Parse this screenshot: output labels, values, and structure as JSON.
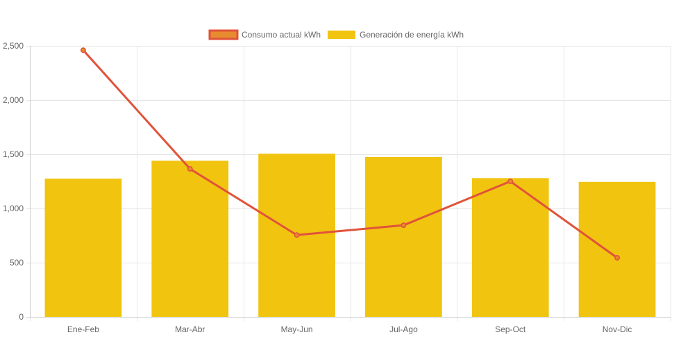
{
  "chart_data": {
    "type": "bar",
    "categories": [
      "Ene-Feb",
      "Mar-Abr",
      "May-Jun",
      "Jul-Ago",
      "Sep-Oct",
      "Nov-Dic"
    ],
    "series": [
      {
        "name": "Consumo actual kWh",
        "type": "line",
        "values": [
          2460,
          1365,
          755,
          845,
          1250,
          545
        ],
        "color": "#e0533a",
        "fill": "#e88a2e"
      },
      {
        "name": "Generación de energía kWh",
        "type": "bar",
        "values": [
          1275,
          1440,
          1505,
          1475,
          1280,
          1245
        ],
        "color": "#f1c40f"
      }
    ],
    "ylim": [
      0,
      2500
    ],
    "yticks": [
      0,
      500,
      1000,
      1500,
      2000,
      2500
    ],
    "ytick_labels": [
      "0",
      "500",
      "1,000",
      "1,500",
      "2,000",
      "2,500"
    ],
    "grid": true,
    "legend_position": "top-center"
  }
}
